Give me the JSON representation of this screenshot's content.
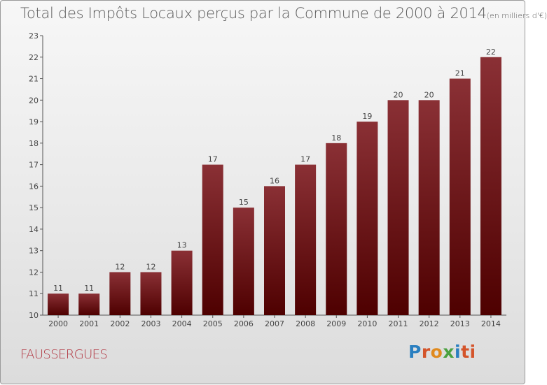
{
  "title": {
    "main": "Total des Impôts Locaux perçus par la Commune de 2000 à 2014",
    "unit": "(en milliers d'€)"
  },
  "commune": "FAUSSERGUES",
  "logo": {
    "letters": [
      "P",
      "r",
      "o",
      "x",
      "i",
      "ti"
    ],
    "text": "Proxiti"
  },
  "colors": {
    "bar_top": "#8a3035",
    "bar_bottom": "#4e0000",
    "commune": "#b0303c"
  },
  "chart_data": {
    "type": "bar",
    "title": "Total des Impôts Locaux perçus par la Commune de 2000 à 2014 (en milliers d'€)",
    "xlabel": "",
    "ylabel": "",
    "categories": [
      "2000",
      "2001",
      "2002",
      "2003",
      "2004",
      "2005",
      "2006",
      "2007",
      "2008",
      "2009",
      "2010",
      "2011",
      "2012",
      "2013",
      "2014"
    ],
    "values": [
      11,
      11,
      12,
      12,
      13,
      17,
      15,
      16,
      17,
      18,
      19,
      20,
      20,
      21,
      22
    ],
    "ylim": [
      10,
      23
    ],
    "yticks": [
      10,
      11,
      12,
      13,
      14,
      15,
      16,
      17,
      18,
      19,
      20,
      21,
      22,
      23
    ],
    "grid": false,
    "data_labels": true
  }
}
